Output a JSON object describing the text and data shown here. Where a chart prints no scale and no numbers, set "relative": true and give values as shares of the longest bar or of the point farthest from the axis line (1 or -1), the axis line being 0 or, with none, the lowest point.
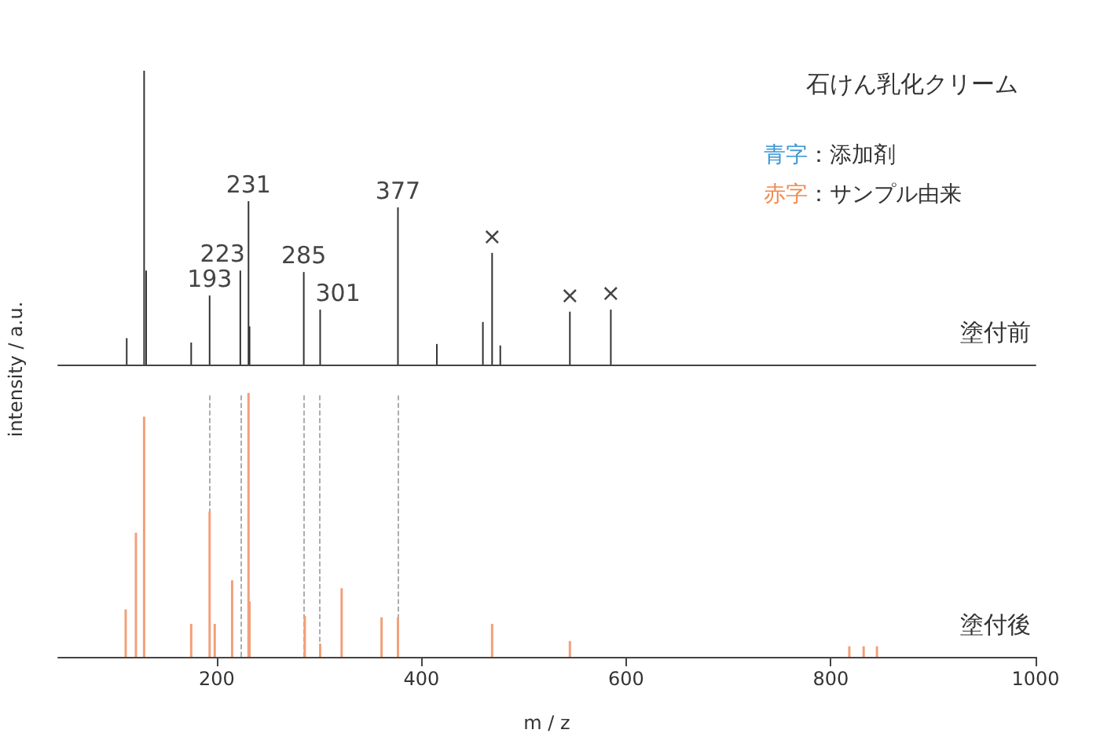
{
  "chart_data": [
    {
      "type": "bar",
      "title": "石けん乳化クリーム",
      "subtitle": "塗付前",
      "relative": true,
      "color": "#333333",
      "xlim": [
        45,
        1000
      ],
      "tick_labels": false,
      "grid": false,
      "x": [
        112,
        129,
        131,
        175,
        193,
        223,
        231,
        232,
        285,
        301,
        377,
        415,
        460,
        469,
        477,
        545,
        585
      ],
      "values": [
        0.09,
        1.0,
        0.32,
        0.075,
        0.235,
        0.32,
        0.556,
        0.13,
        0.315,
        0.187,
        0.535,
        0.07,
        0.145,
        0.38,
        0.065,
        0.18,
        0.187
      ],
      "annotations": [
        {
          "text": "193",
          "x": 193,
          "y": 0.235
        },
        {
          "text": "231",
          "x": 231,
          "y": 0.556
        },
        {
          "text": "223",
          "x": 223,
          "y": 0.32
        },
        {
          "text": "285",
          "x": 285,
          "y": 0.315
        },
        {
          "text": "301",
          "x": 301,
          "y": 0.187
        },
        {
          "text": "377",
          "x": 377,
          "y": 0.535
        },
        {
          "text": "×",
          "x": 469,
          "y": 0.38
        },
        {
          "text": "×",
          "x": 545,
          "y": 0.18
        },
        {
          "text": "×",
          "x": 585,
          "y": 0.187
        },
        "青字：添加剤",
        "赤字：サンプル由来"
      ]
    },
    {
      "type": "bar",
      "title": "塗付後",
      "relative": true,
      "color": "#f2a07a",
      "xlabel": "m / z",
      "ylabel": "intensity / a.u.",
      "xlim": [
        45,
        1000
      ],
      "xticks": [
        200,
        400,
        600,
        800,
        1000
      ],
      "tick_labels": "x",
      "grid": false,
      "x": [
        111,
        121,
        129,
        175,
        193,
        198,
        215,
        231,
        232,
        286,
        301,
        322,
        361,
        377,
        469,
        545,
        818,
        832,
        845
      ],
      "values": [
        0.18,
        0.47,
        0.91,
        0.125,
        0.55,
        0.125,
        0.29,
        1.0,
        0.21,
        0.155,
        0.05,
        0.26,
        0.15,
        0.15,
        0.125,
        0.06,
        0.04,
        0.04,
        0.04
      ],
      "ref_lines": [
        {
          "axis": "x",
          "value": 193,
          "color": "#999999",
          "line_style": "dashed"
        },
        {
          "axis": "x",
          "value": 223,
          "color": "#999999",
          "line_style": "dashed"
        },
        {
          "axis": "x",
          "value": 285,
          "color": "#999999",
          "line_style": "dashed"
        },
        {
          "axis": "x",
          "value": 301,
          "color": "#999999",
          "line_style": "dashed"
        },
        {
          "axis": "x",
          "value": 377,
          "color": "#999999",
          "line_style": "dashed"
        }
      ]
    }
  ]
}
